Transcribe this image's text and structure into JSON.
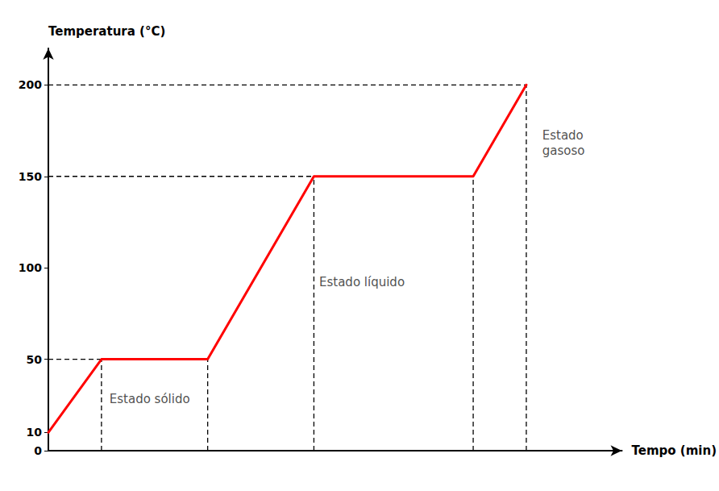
{
  "chart_data": {
    "type": "line",
    "xlabel": "Tempo (min)",
    "ylabel": "Temperatura (°C)",
    "x": [
      0,
      1,
      3,
      5,
      8,
      9
    ],
    "values": [
      10,
      50,
      50,
      150,
      150,
      200
    ],
    "color": "#ff0000",
    "xlim": [
      0,
      10.8
    ],
    "ylim": [
      0,
      220
    ],
    "yticks": [
      0,
      10,
      50,
      100,
      150,
      200
    ],
    "tick_labels": "y",
    "grid": false,
    "reference_lines": [
      {
        "x": [
          1,
          1
        ],
        "y": [
          0,
          50
        ]
      },
      {
        "x": [
          0,
          1
        ],
        "y": [
          50,
          50
        ]
      },
      {
        "x": [
          3,
          3
        ],
        "y": [
          0,
          50
        ]
      },
      {
        "x": [
          5,
          5
        ],
        "y": [
          0,
          150
        ]
      },
      {
        "x": [
          0,
          5
        ],
        "y": [
          150,
          150
        ]
      },
      {
        "x": [
          8,
          8
        ],
        "y": [
          0,
          150
        ]
      },
      {
        "x": [
          9,
          9
        ],
        "y": [
          0,
          200
        ]
      },
      {
        "x": [
          0,
          9
        ],
        "y": [
          200,
          200
        ]
      }
    ],
    "annotations": [
      {
        "text": "Estado sólido",
        "x": 1.15,
        "y": 28
      },
      {
        "text": "Estado líquido",
        "x": 5.1,
        "y": 92
      },
      {
        "text": "Estado\ngasoso",
        "x": 9.3,
        "y": 168
      }
    ]
  }
}
